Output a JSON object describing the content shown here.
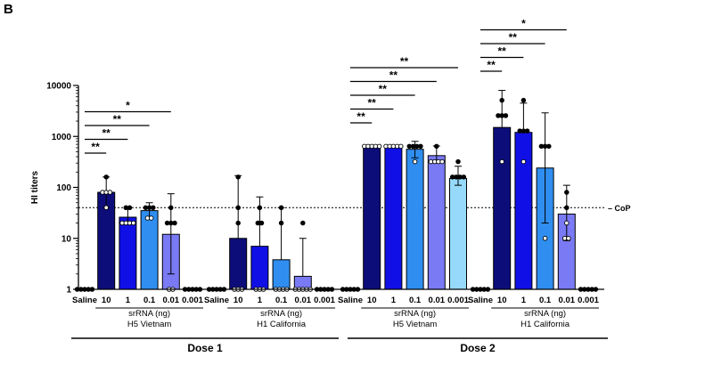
{
  "panel_label": "B",
  "chart_data": {
    "type": "bar",
    "y_scale": "log",
    "ylabel": "HI titers",
    "ylim": [
      1,
      10000
    ],
    "y_ticks": [
      1,
      10,
      100,
      1000,
      10000
    ],
    "y_tick_labels": [
      "1",
      "10",
      "100",
      "1000",
      "10000"
    ],
    "threshold": {
      "label": "CoP",
      "value": 40
    },
    "x_axis_title": "srRNA (ng)",
    "x_labels": [
      "Saline",
      "10",
      "1",
      "0.1",
      "0.01",
      "0.001"
    ],
    "colors": [
      "#0d0d7a",
      "#1010e6",
      "#2f8ef0",
      "#7a7af5",
      "#96d9fb"
    ],
    "panels": [
      {
        "dose": "Dose 1",
        "strain": "H5 Vietnam",
        "groups": [
          {
            "label": "Saline",
            "mean": 1,
            "err_high": null,
            "err_low": null,
            "points": [
              1,
              1,
              1,
              1,
              1
            ]
          },
          {
            "label": "10",
            "mean": 80,
            "err_high": 160,
            "err_low": 40,
            "points": [
              160,
              80,
              80,
              80,
              40
            ]
          },
          {
            "label": "1",
            "mean": 26,
            "err_high": 40,
            "err_low": 20,
            "points": [
              40,
              40,
              20,
              20,
              20,
              20
            ]
          },
          {
            "label": "0.1",
            "mean": 35,
            "err_high": 50,
            "err_low": 25,
            "points": [
              40,
              40,
              40,
              25,
              25
            ]
          },
          {
            "label": "0.01",
            "mean": 12,
            "err_high": 75,
            "err_low": 2,
            "points": [
              40,
              20,
              20,
              20,
              1,
              1
            ]
          },
          {
            "label": "0.001",
            "mean": 1,
            "err_high": null,
            "err_low": null,
            "points": [
              1,
              1,
              1,
              1,
              1
            ]
          }
        ],
        "significance": [
          {
            "from": "Saline",
            "to": "10",
            "label": "**"
          },
          {
            "from": "Saline",
            "to": "1",
            "label": "**"
          },
          {
            "from": "Saline",
            "to": "0.1",
            "label": "**"
          },
          {
            "from": "Saline",
            "to": "0.01",
            "label": "*"
          }
        ]
      },
      {
        "dose": "Dose 1",
        "strain": "H1 California",
        "groups": [
          {
            "label": "Saline",
            "mean": 1,
            "err_high": null,
            "err_low": null,
            "points": [
              1,
              1,
              1,
              1,
              1
            ]
          },
          {
            "label": "10",
            "mean": 10,
            "err_high": 170,
            "err_low": null,
            "points": [
              160,
              40,
              20,
              1,
              1,
              1
            ]
          },
          {
            "label": "1",
            "mean": 7,
            "err_high": 65,
            "err_low": null,
            "points": [
              40,
              20,
              20,
              1,
              1,
              1
            ]
          },
          {
            "label": "0.1",
            "mean": 3.8,
            "err_high": 40,
            "err_low": null,
            "points": [
              40,
              20,
              1,
              1,
              1,
              1
            ]
          },
          {
            "label": "0.01",
            "mean": 1.8,
            "err_high": 10,
            "err_low": null,
            "points": [
              20,
              1,
              1,
              1,
              1,
              1
            ]
          },
          {
            "label": "0.001",
            "mean": 1,
            "err_high": null,
            "err_low": null,
            "points": [
              1,
              1,
              1,
              1,
              1
            ]
          }
        ],
        "significance": []
      },
      {
        "dose": "Dose 2",
        "strain": "H5 Vietnam",
        "groups": [
          {
            "label": "Saline",
            "mean": 1,
            "err_high": null,
            "err_low": null,
            "points": [
              1,
              1,
              1,
              1,
              1
            ]
          },
          {
            "label": "10",
            "mean": 640,
            "err_high": 640,
            "err_low": 640,
            "points": [
              640,
              640,
              640,
              640,
              640
            ]
          },
          {
            "label": "1",
            "mean": 640,
            "err_high": 640,
            "err_low": 640,
            "points": [
              640,
              640,
              640,
              640,
              640
            ]
          },
          {
            "label": "0.1",
            "mean": 560,
            "err_high": 800,
            "err_low": 380,
            "points": [
              640,
              640,
              640,
              640,
              320
            ]
          },
          {
            "label": "0.01",
            "mean": 420,
            "err_high": 650,
            "err_low": 300,
            "points": [
              640,
              320,
              320,
              320,
              320
            ]
          },
          {
            "label": "0.001",
            "mean": 150,
            "err_high": 260,
            "err_low": 110,
            "points": [
              320,
              160,
              160,
              160,
              160
            ]
          }
        ],
        "significance": [
          {
            "from": "Saline",
            "to": "10",
            "label": "**"
          },
          {
            "from": "Saline",
            "to": "1",
            "label": "**"
          },
          {
            "from": "Saline",
            "to": "0.1",
            "label": "**"
          },
          {
            "from": "Saline",
            "to": "0.01",
            "label": "**"
          },
          {
            "from": "Saline",
            "to": "0.001",
            "label": "**"
          }
        ]
      },
      {
        "dose": "Dose 2",
        "strain": "H1 California",
        "groups": [
          {
            "label": "Saline",
            "mean": 1,
            "err_high": null,
            "err_low": null,
            "points": [
              1,
              1,
              1,
              1,
              1
            ]
          },
          {
            "label": "10",
            "mean": 1500,
            "err_high": 8000,
            "err_low": null,
            "points": [
              5120,
              2560,
              2560,
              2560,
              320
            ]
          },
          {
            "label": "1",
            "mean": 1200,
            "err_high": 4500,
            "err_low": null,
            "points": [
              5120,
              1280,
              1280,
              1280,
              320
            ]
          },
          {
            "label": "0.1",
            "mean": 240,
            "err_high": 2900,
            "err_low": 20,
            "points": [
              640,
              640,
              640,
              10
            ]
          },
          {
            "label": "0.01",
            "mean": 30,
            "err_high": 110,
            "err_low": 9,
            "points": [
              80,
              40,
              20,
              10,
              10
            ]
          },
          {
            "label": "0.001",
            "mean": 1,
            "err_high": null,
            "err_low": null,
            "points": [
              1,
              1,
              1,
              1,
              1
            ]
          }
        ],
        "significance": [
          {
            "from": "Saline",
            "to": "10",
            "label": "**"
          },
          {
            "from": "Saline",
            "to": "1",
            "label": "**"
          },
          {
            "from": "Saline",
            "to": "0.1",
            "label": "**"
          },
          {
            "from": "Saline",
            "to": "0.01",
            "label": "*"
          }
        ]
      }
    ],
    "dose_labels": [
      "Dose 1",
      "Dose 2"
    ]
  }
}
